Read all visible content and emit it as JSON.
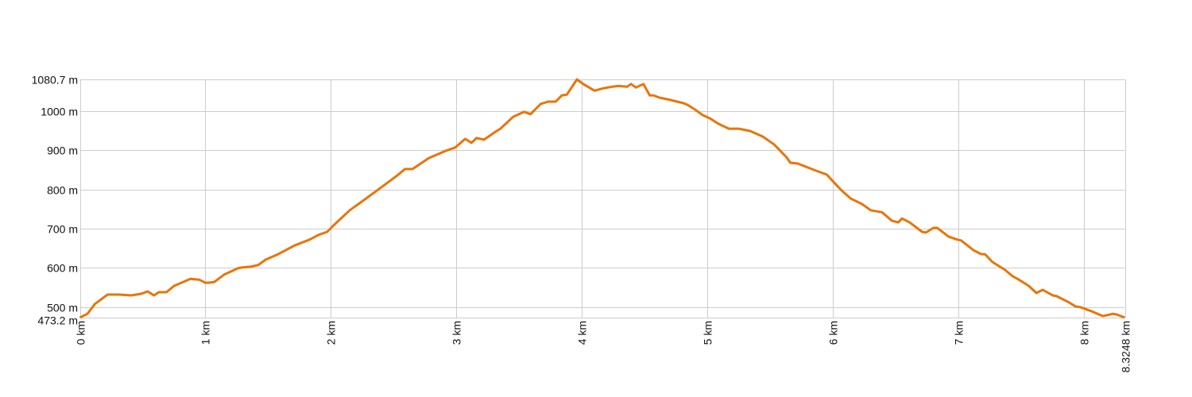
{
  "chart_data": {
    "type": "line",
    "title": "",
    "xlabel": "",
    "ylabel": "",
    "x_unit": "km",
    "y_unit": "m",
    "xlim": [
      0,
      8.3248
    ],
    "ylim": [
      473.2,
      1080.7
    ],
    "grid": true,
    "legend": "none",
    "line_color": "#e8750a",
    "grid_color": "#cccccc",
    "x_ticks": [
      {
        "value": 0,
        "label": "0 km"
      },
      {
        "value": 1,
        "label": "1 km"
      },
      {
        "value": 2,
        "label": "2 km"
      },
      {
        "value": 3,
        "label": "3 km"
      },
      {
        "value": 4,
        "label": "4 km"
      },
      {
        "value": 5,
        "label": "5 km"
      },
      {
        "value": 6,
        "label": "6 km"
      },
      {
        "value": 7,
        "label": "7 km"
      },
      {
        "value": 8,
        "label": "8 km"
      },
      {
        "value": 8.3248,
        "label": "8.3248 km"
      }
    ],
    "y_ticks": [
      {
        "value": 473.2,
        "label": "473.2 m"
      },
      {
        "value": 500,
        "label": "500 m"
      },
      {
        "value": 600,
        "label": "600 m"
      },
      {
        "value": 700,
        "label": "700 m"
      },
      {
        "value": 800,
        "label": "800 m"
      },
      {
        "value": 900,
        "label": "900 m"
      },
      {
        "value": 1000,
        "label": "1000 m"
      },
      {
        "value": 1080.7,
        "label": "1080.7 m"
      }
    ],
    "series": [
      {
        "x": [
          0,
          0.06,
          0.12,
          0.22,
          0.31,
          0.41,
          0.49,
          0.54,
          0.59,
          0.63,
          0.69,
          0.75,
          0.88,
          0.95,
          1.0,
          1.02,
          1.07,
          1.15,
          1.26,
          1.29,
          1.36,
          1.42,
          1.48,
          1.58,
          1.71,
          1.83,
          1.9,
          1.97,
          2.02,
          2.15,
          2.28,
          2.4,
          2.53,
          2.59,
          2.65,
          2.78,
          2.91,
          2.99,
          3.07,
          3.12,
          3.16,
          3.22,
          3.32,
          3.35,
          3.45,
          3.54,
          3.59,
          3.67,
          3.73,
          3.79,
          3.84,
          3.88,
          3.96,
          4.01,
          4.1,
          4.17,
          4.24,
          4.29,
          4.36,
          4.39,
          4.43,
          4.49,
          4.54,
          4.57,
          4.62,
          4.68,
          4.81,
          4.84,
          4.9,
          4.96,
          5.02,
          5.09,
          5.17,
          5.25,
          5.34,
          5.44,
          5.53,
          5.63,
          5.66,
          5.72,
          5.88,
          5.95,
          6.01,
          6.07,
          6.14,
          6.23,
          6.3,
          6.39,
          6.47,
          6.52,
          6.55,
          6.61,
          6.71,
          6.74,
          6.8,
          6.83,
          6.92,
          6.99,
          7.02,
          7.12,
          7.18,
          7.21,
          7.27,
          7.37,
          7.43,
          7.48,
          7.56,
          7.62,
          7.67,
          7.75,
          7.78,
          7.88,
          7.93,
          7.97,
          8.07,
          8.15,
          8.23,
          8.26,
          8.3248
        ],
        "y": [
          473.2,
          483,
          508,
          532,
          532,
          530,
          534,
          540,
          530,
          538,
          538,
          554,
          572,
          570,
          562,
          562,
          564,
          583,
          599,
          601,
          603,
          607,
          621,
          635,
          657,
          672,
          684,
          692,
          708,
          747,
          777,
          805,
          836,
          852,
          852,
          880,
          898,
          907,
          929,
          919,
          931,
          927,
          949,
          955,
          985,
          998,
          992,
          1018,
          1024,
          1024,
          1040,
          1042,
          1080.7,
          1069,
          1052,
          1058,
          1062,
          1064,
          1062,
          1069,
          1060,
          1069,
          1040,
          1040,
          1034,
          1030,
          1020,
          1016,
          1004,
          990,
          981,
          967,
          955,
          955,
          949,
          935,
          915,
          882,
          868,
          866,
          846,
          838,
          817,
          797,
          777,
          763,
          747,
          742,
          720,
          716,
          726,
          716,
          692,
          690,
          702,
          702,
          680,
          672,
          670,
          645,
          635,
          635,
          615,
          595,
          579,
          570,
          554,
          536,
          544,
          530,
          528,
          512,
          502,
          500,
          488,
          477,
          483,
          481,
          473.2
        ]
      }
    ]
  }
}
